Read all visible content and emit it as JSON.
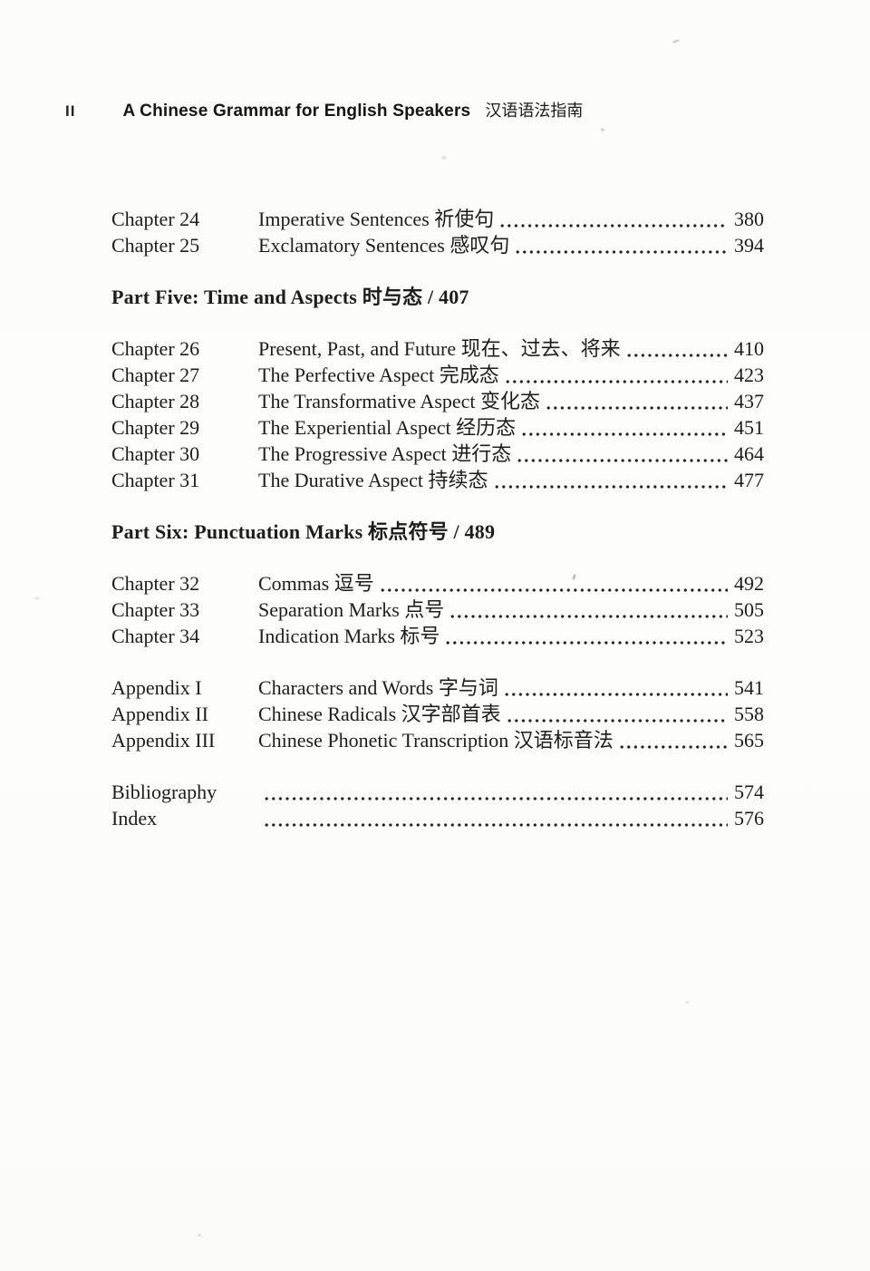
{
  "header": {
    "page_number": "II",
    "book_title_en": "A Chinese Grammar for English Speakers",
    "book_title_zh": "汉语语法指南"
  },
  "toc": {
    "blocks": [
      {
        "type": "rows",
        "rows": [
          {
            "label": "Chapter 24",
            "title": "Imperative Sentences 祈使句",
            "page": "380"
          },
          {
            "label": "Chapter 25",
            "title": "Exclamatory Sentences 感叹句",
            "page": "394"
          }
        ]
      },
      {
        "type": "heading",
        "text": "Part Five: Time and Aspects 时与态 / 407"
      },
      {
        "type": "rows",
        "rows": [
          {
            "label": "Chapter 26",
            "title": "Present, Past, and Future 现在、过去、将来",
            "page": "410"
          },
          {
            "label": "Chapter 27",
            "title": "The Perfective Aspect 完成态",
            "page": "423"
          },
          {
            "label": "Chapter 28",
            "title": "The Transformative Aspect 变化态",
            "page": "437"
          },
          {
            "label": "Chapter 29",
            "title": "The Experiential Aspect 经历态",
            "page": "451"
          },
          {
            "label": "Chapter 30",
            "title": "The Progressive Aspect 进行态",
            "page": "464"
          },
          {
            "label": "Chapter 31",
            "title": "The Durative Aspect 持续态",
            "page": "477"
          }
        ]
      },
      {
        "type": "heading",
        "text": "Part Six: Punctuation Marks 标点符号 / 489"
      },
      {
        "type": "rows",
        "rows": [
          {
            "label": "Chapter 32",
            "title": "Commas 逗号",
            "page": "492"
          },
          {
            "label": "Chapter 33",
            "title": "Separation Marks 点号",
            "page": "505"
          },
          {
            "label": "Chapter 34",
            "title": "Indication Marks 标号",
            "page": "523"
          }
        ]
      },
      {
        "type": "rows",
        "rows": [
          {
            "label": "Appendix I",
            "title": "Characters and Words 字与词",
            "page": "541"
          },
          {
            "label": "Appendix II",
            "title": "Chinese Radicals 汉字部首表",
            "page": "558"
          },
          {
            "label": "Appendix III",
            "title": "Chinese Phonetic Transcription 汉语标音法",
            "page": "565"
          }
        ]
      },
      {
        "type": "rows",
        "rows": [
          {
            "label": "Bibliography",
            "title": "",
            "page": "574"
          },
          {
            "label": "Index",
            "title": "",
            "page": "576"
          }
        ]
      }
    ]
  }
}
